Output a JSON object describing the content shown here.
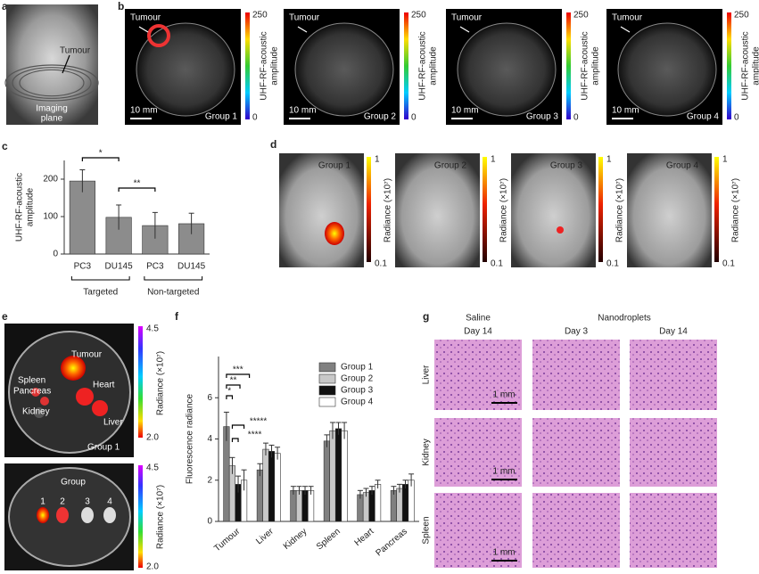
{
  "a": {
    "label": "a",
    "tumour": "Tumour",
    "plane": [
      "Imaging",
      "plane"
    ]
  },
  "b": {
    "label": "b",
    "tumour": "Tumour",
    "scale": "10 mm",
    "groups": [
      "Group 1",
      "Group 2",
      "Group 3",
      "Group 4"
    ],
    "cbar_max": "250",
    "cbar_min": "0",
    "cbar_title": [
      "UHF-RF-acoustic",
      "amplitude"
    ]
  },
  "d": {
    "label": "d",
    "groups": [
      "Group 1",
      "Group 2",
      "Group 3",
      "Group 4"
    ],
    "cbar_max": "1",
    "cbar_min": "0.1",
    "cbar_title": "Radiance (×10⁷)"
  },
  "e": {
    "label": "e",
    "organs": [
      "Tumour",
      "Spleen",
      "Pancreas",
      "Heart",
      "Kidney",
      "Liver"
    ],
    "group": "Group 1",
    "group_header": "Group",
    "group_numbers": [
      "1",
      "2",
      "3",
      "4"
    ],
    "cbar_max": "4.5",
    "cbar_min": "2.0",
    "cbar_title": "Radiance (×10⁷)"
  },
  "g": {
    "label": "g",
    "saline": "Saline",
    "nanodroplets": "Nanodroplets",
    "days": [
      "Day 14",
      "Day 3",
      "Day 14"
    ],
    "rows": [
      "Liver",
      "Kidney",
      "Spleen"
    ],
    "scale": "1 mm"
  },
  "chart_data": [
    {
      "type": "bar",
      "panel": "c",
      "ylabel": [
        "UHF-RF-acoustic",
        "amplitude"
      ],
      "categories": [
        "PC3",
        "DU145",
        "PC3",
        "DU145"
      ],
      "values": [
        195,
        98,
        76,
        81
      ],
      "errors": [
        30,
        33,
        35,
        28
      ],
      "color": "#8c8c8c",
      "ylim": [
        0,
        250
      ],
      "yticks": [
        0,
        100,
        200
      ],
      "group_labels": [
        "Targeted",
        "Non-targeted"
      ],
      "annotations": [
        "*",
        "**"
      ]
    },
    {
      "type": "bar",
      "panel": "f",
      "ylabel": "Fluorescence radiance",
      "categories": [
        "Tumour",
        "Liver",
        "Kidney",
        "Spleen",
        "Heart",
        "Pancreas"
      ],
      "series": [
        {
          "name": "Group 1",
          "color": "#808080",
          "values": [
            4.6,
            2.5,
            1.5,
            3.9,
            1.3,
            1.5
          ],
          "errors": [
            0.7,
            0.3,
            0.2,
            0.3,
            0.2,
            0.2
          ]
        },
        {
          "name": "Group 2",
          "color": "#c8c8c8",
          "values": [
            2.7,
            3.5,
            1.5,
            4.4,
            1.4,
            1.6
          ],
          "errors": [
            0.4,
            0.3,
            0.2,
            0.4,
            0.2,
            0.2
          ]
        },
        {
          "name": "Group 3",
          "color": "#111111",
          "values": [
            1.8,
            3.4,
            1.5,
            4.5,
            1.5,
            1.8
          ],
          "errors": [
            0.4,
            0.3,
            0.2,
            0.3,
            0.2,
            0.2
          ]
        },
        {
          "name": "Group 4",
          "color": "#ffffff",
          "values": [
            2.0,
            3.3,
            1.5,
            4.4,
            1.8,
            2.0
          ],
          "errors": [
            0.5,
            0.3,
            0.2,
            0.4,
            0.2,
            0.3
          ]
        }
      ],
      "ylim": [
        0,
        8
      ],
      "yticks": [
        0,
        2,
        4,
        6
      ],
      "legend": "top-right",
      "annotations": [
        "***",
        "**",
        "*",
        "*****",
        "****"
      ]
    }
  ]
}
